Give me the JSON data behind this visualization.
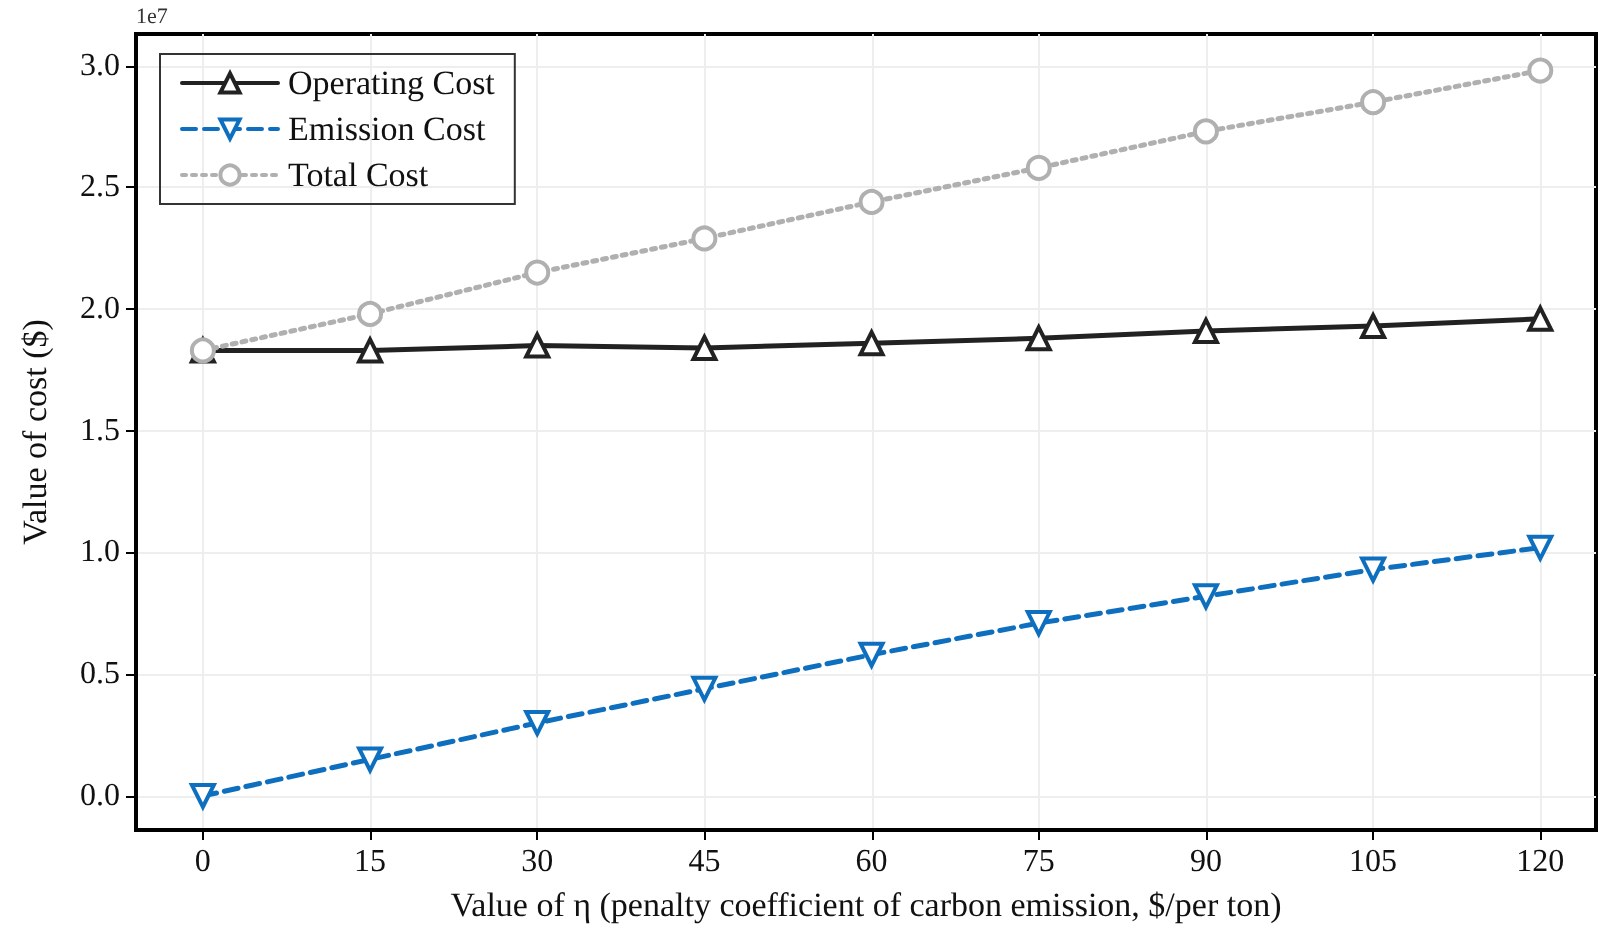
{
  "chart_data": {
    "type": "line",
    "xlabel": "Value of η (penalty coefficient of carbon emission, $/per ton)",
    "ylabel": "Value of cost ($)",
    "annotations": [
      "1e7"
    ],
    "x": [
      0,
      15,
      30,
      45,
      60,
      75,
      90,
      105,
      120
    ],
    "series": [
      {
        "name": "Operating Cost",
        "color": "#222222",
        "marker": "triangle",
        "line_style": "solid",
        "values": [
          1.83,
          1.83,
          1.85,
          1.84,
          1.86,
          1.88,
          1.91,
          1.93,
          1.96
        ]
      },
      {
        "name": "Emission Cost",
        "color": "#0f6fbf",
        "marker": "triangle-down",
        "line_style": "dashed",
        "values": [
          0,
          0.15,
          0.3,
          0.44,
          0.58,
          0.71,
          0.82,
          0.93,
          1.02
        ]
      },
      {
        "name": "Total Cost",
        "color": "#b0b0b0",
        "marker": "circle",
        "line_style": "dotted",
        "values": [
          1.83,
          1.98,
          2.15,
          2.29,
          2.44,
          2.58,
          2.73,
          2.85,
          2.98
        ]
      }
    ],
    "xlim": [
      -6,
      125
    ],
    "xticks": [
      0,
      15,
      30,
      45,
      60,
      75,
      90,
      105,
      120
    ],
    "ylim": [
      -0.14,
      3.13
    ],
    "yticks": [
      {
        "value": 0,
        "label": "0.0"
      },
      0.5,
      {
        "value": 1,
        "label": "1.0"
      },
      1.5,
      {
        "value": 2,
        "label": "2.0"
      },
      2.5,
      {
        "value": 3,
        "label": "3.0"
      }
    ],
    "grid": true,
    "legend": "top left"
  }
}
